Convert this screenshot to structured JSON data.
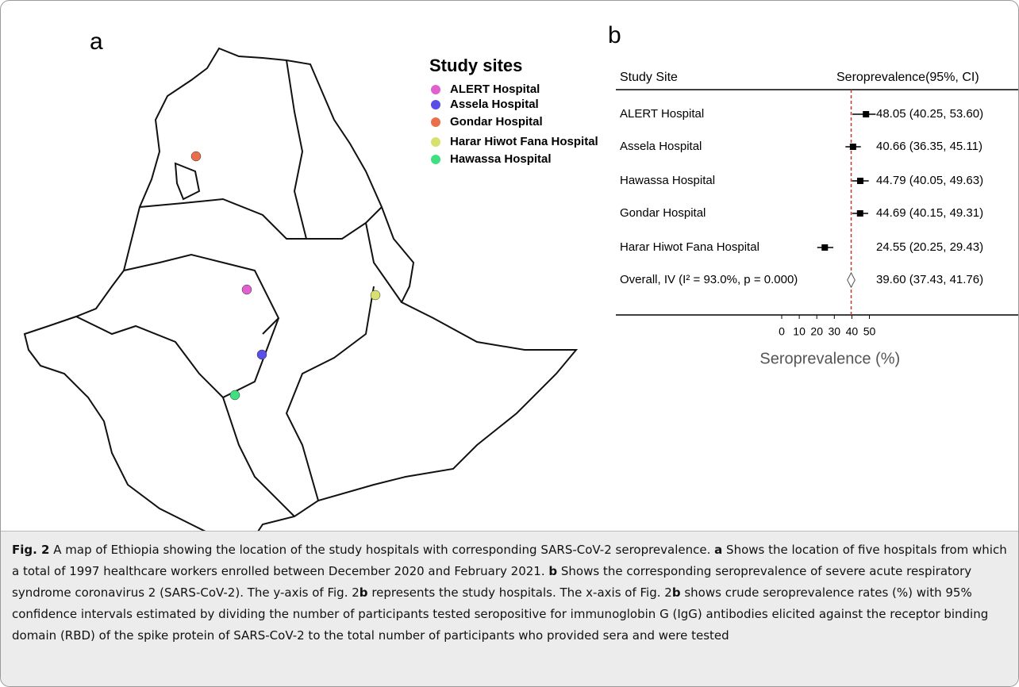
{
  "map": {
    "label": "a",
    "legend_title": "Study sites",
    "sites": [
      {
        "name": "ALERT Hospital",
        "color": "#e060d0"
      },
      {
        "name": "Assela Hospital",
        "color": "#5a4ee8"
      },
      {
        "name": "Gondar Hospital",
        "color": "#e8704a"
      },
      {
        "name": "Harar Hiwot Fana Hospital",
        "color": "#d8e070"
      },
      {
        "name": "Hawassa Hospital",
        "color": "#40e080"
      }
    ]
  },
  "chart_data": {
    "type": "forest",
    "panel_label": "b",
    "columns": [
      "Study Site",
      "Seroprevalence(95%, CI)"
    ],
    "categories": [
      "ALERT Hospital",
      "Assela Hospital",
      "Hawassa  Hospital",
      "Gondar Hospital",
      "Harar Hiwot Fana Hospital",
      "Overall, IV (I² = 93.0%, p = 0.000)"
    ],
    "values": [
      48.05,
      40.66,
      44.79,
      44.69,
      24.55,
      39.6
    ],
    "lower": [
      40.25,
      36.35,
      40.05,
      40.15,
      20.25,
      37.43
    ],
    "upper": [
      53.6,
      45.11,
      49.63,
      49.31,
      29.43,
      41.76
    ],
    "value_labels": [
      "48.05 (40.25, 53.60)",
      "40.66 (36.35, 45.11)",
      "44.79 (40.05, 49.63)",
      "44.69 (40.15, 49.31)",
      "24.55 (20.25, 29.43)",
      "39.60 (37.43, 41.76)"
    ],
    "xlim": [
      0,
      55
    ],
    "xticks": [
      0,
      10,
      20,
      30,
      40,
      50
    ],
    "xlabel": "Seroprevalence (%)",
    "color": "#000000",
    "overall_color": "#c0392b"
  },
  "caption": {
    "segments": [
      "Fig. 2",
      "  A map of Ethiopia showing the location of the study hospitals with corresponding SARS-CoV-2 seroprevalence. ",
      "a",
      " Shows the location of five hospitals from which a total of 1997 healthcare workers enrolled between December 2020 and February 2021. ",
      "b",
      " Shows the corresponding seroprevalence of severe acute respiratory syndrome coronavirus 2 (SARS-CoV-2). The y-axis of Fig. 2",
      "b",
      " represents the study hospitals. The x-axis of Fig. 2",
      "b",
      " shows crude seroprevalence rates (%) with 95% confidence intervals estimated by dividing the number of participants tested seropositive for immunoglobin G (IgG) antibodies elicited against the receptor binding domain (RBD) of the spike protein of SARS-CoV-2 to the total number of participants who provided sera and were tested"
    ]
  }
}
